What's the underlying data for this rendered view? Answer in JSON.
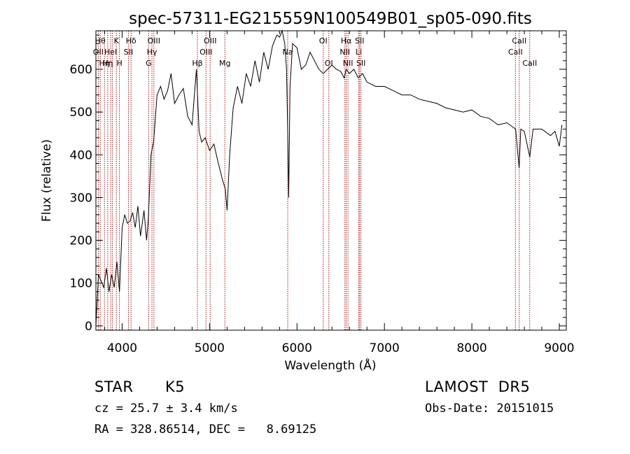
{
  "chart_data": {
    "type": "line",
    "title": "spec-57311-EG215559N100549B01_sp05-090.fits",
    "xlabel": "Wavelength (Å)",
    "ylabel": "Flux (relative)",
    "xlim": [
      3700,
      9080
    ],
    "ylim": [
      -10,
      690
    ],
    "xticks": [
      4000,
      5000,
      6000,
      7000,
      8000,
      9000
    ],
    "yticks": [
      0,
      100,
      200,
      300,
      400,
      500,
      600
    ],
    "series": [
      {
        "x": [
          3700,
          3730,
          3760,
          3790,
          3820,
          3850,
          3880,
          3910,
          3940,
          3970,
          4000,
          4030,
          4060,
          4090,
          4120,
          4150,
          4180,
          4210,
          4250,
          4280,
          4300,
          4330,
          4360,
          4400,
          4440,
          4480,
          4520,
          4560,
          4600,
          4650,
          4700,
          4750,
          4800,
          4850,
          4880,
          4910,
          4950,
          5000,
          5050,
          5100,
          5150,
          5180,
          5200,
          5230,
          5270,
          5320,
          5370,
          5420,
          5470,
          5520,
          5570,
          5620,
          5670,
          5720,
          5770,
          5800,
          5830,
          5860,
          5880,
          5895,
          5905,
          5920,
          5950,
          6000,
          6050,
          6100,
          6150,
          6200,
          6250,
          6300,
          6350,
          6400,
          6450,
          6500,
          6540,
          6563,
          6600,
          6650,
          6700,
          6750,
          6800,
          6900,
          7000,
          7100,
          7200,
          7300,
          7400,
          7500,
          7600,
          7700,
          7800,
          7900,
          8000,
          8100,
          8200,
          8300,
          8400,
          8500,
          8540,
          8560,
          8600,
          8662,
          8700,
          8800,
          8900,
          8950,
          9000,
          9030
        ],
        "y": [
          0,
          120,
          105,
          90,
          135,
          80,
          120,
          90,
          150,
          80,
          230,
          260,
          240,
          245,
          265,
          230,
          280,
          210,
          270,
          200,
          250,
          400,
          430,
          540,
          560,
          530,
          550,
          590,
          520,
          540,
          555,
          490,
          470,
          600,
          455,
          430,
          440,
          410,
          425,
          380,
          340,
          320,
          270,
          400,
          510,
          560,
          520,
          590,
          560,
          620,
          570,
          640,
          600,
          655,
          680,
          675,
          690,
          660,
          600,
          440,
          300,
          560,
          660,
          650,
          600,
          610,
          640,
          620,
          600,
          590,
          600,
          610,
          600,
          595,
          580,
          600,
          590,
          600,
          580,
          590,
          570,
          560,
          560,
          550,
          540,
          540,
          530,
          525,
          520,
          510,
          505,
          500,
          505,
          490,
          485,
          470,
          475,
          460,
          370,
          460,
          455,
          395,
          460,
          460,
          445,
          455,
          420,
          470
        ]
      }
    ],
    "lines": [
      {
        "w": 3727,
        "label": "OII",
        "row": 1
      },
      {
        "w": 3750,
        "label": "Hθ",
        "row": 0
      },
      {
        "w": 3798,
        "label": "Hη",
        "row": 2
      },
      {
        "w": 3835,
        "label": "Hη",
        "row": 2
      },
      {
        "w": 3869,
        "label": "HeI",
        "row": 1
      },
      {
        "w": 3889,
        "label": "",
        "row": 0
      },
      {
        "w": 3934,
        "label": "K",
        "row": 0
      },
      {
        "w": 3969,
        "label": "H",
        "row": 2
      },
      {
        "w": 4072,
        "label": "SII",
        "row": 1
      },
      {
        "w": 4102,
        "label": "Hδ",
        "row": 0
      },
      {
        "w": 4304,
        "label": "G",
        "row": 2
      },
      {
        "w": 4341,
        "label": "Hγ",
        "row": 1
      },
      {
        "w": 4363,
        "label": "OIII",
        "row": 0
      },
      {
        "w": 4861,
        "label": "Hβ",
        "row": 2
      },
      {
        "w": 4959,
        "label": "OIII",
        "row": 1
      },
      {
        "w": 5007,
        "label": "OIII",
        "row": 0
      },
      {
        "w": 5175,
        "label": "Mg",
        "row": 2
      },
      {
        "w": 5894,
        "label": "Na",
        "row": 1
      },
      {
        "w": 6300,
        "label": "OI",
        "row": 0
      },
      {
        "w": 6364,
        "label": "OI",
        "row": 2
      },
      {
        "w": 6548,
        "label": "NII",
        "row": 1
      },
      {
        "w": 6563,
        "label": "Hα",
        "row": 0
      },
      {
        "w": 6583,
        "label": "NII",
        "row": 2
      },
      {
        "w": 6707,
        "label": "Li",
        "row": 1
      },
      {
        "w": 6716,
        "label": "SII",
        "row": 0
      },
      {
        "w": 6731,
        "label": "SII",
        "row": 2
      },
      {
        "w": 8498,
        "label": "CaII",
        "row": 1
      },
      {
        "w": 8542,
        "label": "CaII",
        "row": 0
      },
      {
        "w": 8662,
        "label": "CaII",
        "row": 2
      }
    ]
  },
  "info": {
    "object_class": "STAR",
    "subclass": "K5",
    "survey": "LAMOST  DR5",
    "cz": "cz = 25.7 ± 3.4 km/s",
    "obs_date": "Obs-Date: 20151015",
    "coords": "RA = 328.86514, DEC =   8.69125"
  },
  "colors": {
    "spectrum": "#000000",
    "lines": "#b01818",
    "frame": "#000000"
  }
}
